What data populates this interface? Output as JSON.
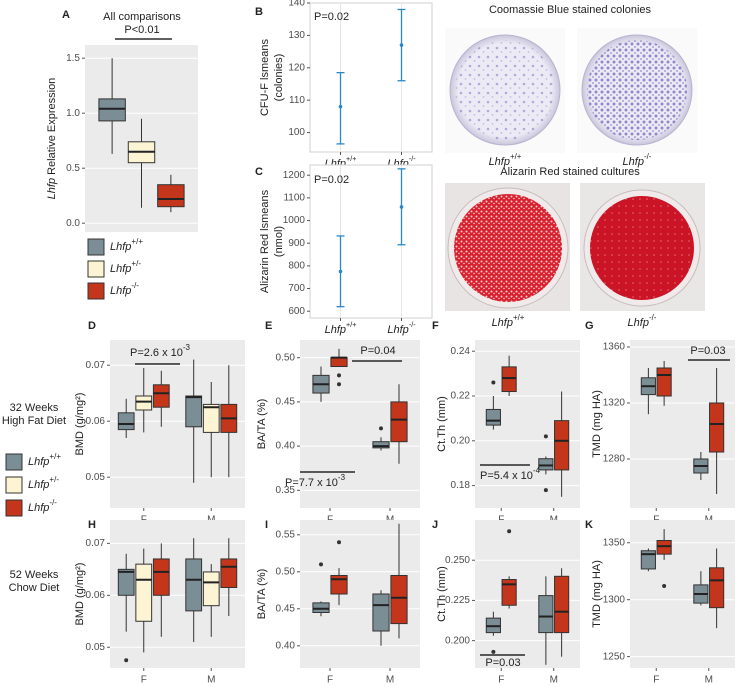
{
  "chart_data": [
    {
      "type": "box",
      "panel": "A",
      "ylabel_italic": "Lhfp",
      "ylabel": [
        "Relative Expression"
      ],
      "categories": [
        null
      ],
      "annotations": [
        {
          "text": "All comparisons"
        },
        {
          "text": "P<0.01"
        }
      ],
      "ylim": [
        -0.08,
        1.62
      ],
      "yticks": [
        {
          "value": 0,
          "label": "0.0"
        },
        {
          "value": 0.5,
          "label": "0.5"
        },
        {
          "value": 1,
          "label": "1.0"
        },
        {
          "value": 1.5,
          "label": "1.5"
        }
      ],
      "grid": true,
      "series": [
        {
          "name": "Lhfp",
          "genotype": "+/+",
          "color": "#7b8d95",
          "values": [
            {
              "min": 0.63,
              "q1": 0.93,
              "median": 1.04,
              "q3": 1.13,
              "max": 1.5,
              "outliers": []
            }
          ]
        },
        {
          "name": "Lhfp",
          "genotype": "+/-",
          "color": "#fcf4d2",
          "values": [
            {
              "min": 0.14,
              "q1": 0.55,
              "median": 0.65,
              "q3": 0.74,
              "max": 0.95,
              "outliers": []
            }
          ]
        },
        {
          "name": "Lhfp",
          "genotype": "-/-",
          "color": "#c4361b",
          "values": [
            {
              "min": 0.1,
              "q1": 0.15,
              "median": 0.22,
              "q3": 0.35,
              "max": 0.44,
              "outliers": []
            }
          ]
        }
      ]
    },
    {
      "type": "errorbar",
      "panel": "B",
      "ylabel": [
        "CFU-F lsmeans",
        "(colonies)"
      ],
      "color": "#2a88c9",
      "categories": [
        {
          "gene": "Lhfp",
          "genotype": "+/+"
        },
        {
          "gene": "Lhfp",
          "genotype": "-/-"
        }
      ],
      "values": [
        108,
        127
      ],
      "lower": [
        96.5,
        116
      ],
      "upper": [
        118.5,
        138
      ],
      "annotations": [
        {
          "text": "P=0.02"
        }
      ],
      "ylim": [
        94,
        140
      ],
      "yticks": [
        100,
        110,
        120,
        130,
        140
      ]
    },
    {
      "type": "errorbar",
      "panel": "C",
      "ylabel": [
        "Alizarin Red lsmeans",
        "(nmol)"
      ],
      "color": "#2a88c9",
      "categories": [
        {
          "gene": "Lhfp",
          "genotype": "+/+"
        },
        {
          "gene": "Lhfp",
          "genotype": "-/-"
        }
      ],
      "values": [
        775,
        1060
      ],
      "lower": [
        620,
        893
      ],
      "upper": [
        932,
        1228
      ],
      "annotations": [
        {
          "text": "P=0.02"
        }
      ],
      "ylim": [
        570,
        1245
      ],
      "yticks": [
        600,
        700,
        800,
        900,
        1000,
        1100,
        1200
      ]
    },
    {
      "type": "box",
      "panel": "D",
      "ylabel": [
        "BMD (g/mg²)"
      ],
      "categories": [
        "F",
        "M"
      ],
      "annotations": [
        {
          "text": "P=2.6 x 10",
          "sup": "-3"
        }
      ],
      "ylim": [
        0.0445,
        0.0745
      ],
      "yticks": [
        0.05,
        0.06,
        0.07
      ],
      "grid": true,
      "series": [
        {
          "name": "Lhfp",
          "genotype": "+/+",
          "color": "#7b8d95",
          "values": [
            {
              "min": 0.057,
              "q1": 0.0585,
              "median": 0.0595,
              "q3": 0.0615,
              "max": 0.064,
              "outliers": []
            },
            {
              "min": 0.049,
              "q1": 0.059,
              "median": 0.0643,
              "q3": 0.0645,
              "max": 0.071,
              "outliers": []
            }
          ]
        },
        {
          "name": "Lhfp",
          "genotype": "+/-",
          "color": "#fcf4d2",
          "values": [
            {
              "min": 0.058,
              "q1": 0.062,
              "median": 0.0635,
              "q3": 0.0645,
              "max": 0.0695,
              "outliers": []
            },
            {
              "min": 0.05,
              "q1": 0.058,
              "median": 0.0625,
              "q3": 0.063,
              "max": 0.067,
              "outliers": []
            }
          ]
        },
        {
          "name": "Lhfp",
          "genotype": "-/-",
          "color": "#c4361b",
          "values": [
            {
              "min": 0.059,
              "q1": 0.0625,
              "median": 0.065,
              "q3": 0.0665,
              "max": 0.069,
              "outliers": []
            },
            {
              "min": 0.05,
              "q1": 0.058,
              "median": 0.0605,
              "q3": 0.063,
              "max": 0.07,
              "outliers": []
            }
          ]
        }
      ]
    },
    {
      "type": "box",
      "panel": "E",
      "ylabel": [
        "BA/TA (%)"
      ],
      "categories": [
        "F",
        "M"
      ],
      "annotations": [
        {
          "text": "P=7.7 x 10",
          "sup": "-3"
        },
        {
          "text": "P=0.04"
        }
      ],
      "ylim": [
        0.33,
        0.52
      ],
      "yticks": [
        0.35,
        {
          "value": 0.4,
          "label": "0.40"
        },
        0.45,
        {
          "value": 0.5,
          "label": "0.50"
        }
      ],
      "grid": true,
      "series": [
        {
          "name": "Lhfp",
          "genotype": "+/+",
          "color": "#7b8d95",
          "values": [
            {
              "min": 0.45,
              "q1": 0.46,
              "median": 0.47,
              "q3": 0.48,
              "max": 0.49,
              "outliers": []
            },
            {
              "min": 0.395,
              "q1": 0.398,
              "median": 0.4,
              "q3": 0.405,
              "max": 0.41,
              "outliers": [
                0.42
              ]
            }
          ]
        },
        {
          "name": "Lhfp",
          "genotype": "-/-",
          "color": "#c4361b",
          "values": [
            {
              "min": 0.49,
              "q1": 0.49,
              "median": 0.5,
              "q3": 0.5,
              "max": 0.51,
              "outliers": [
                0.47,
                0.48
              ]
            },
            {
              "min": 0.38,
              "q1": 0.405,
              "median": 0.43,
              "q3": 0.45,
              "max": 0.47,
              "outliers": []
            }
          ]
        }
      ]
    },
    {
      "type": "box",
      "panel": "F",
      "ylabel": [
        "Ct.Th (mm)"
      ],
      "categories": [
        "F",
        "M"
      ],
      "annotations": [
        {
          "text": "P=5.4 x 10",
          "sup": "-4"
        }
      ],
      "ylim": [
        0.17,
        0.245
      ],
      "yticks": [
        0.18,
        {
          "value": 0.2,
          "label": "0.20"
        },
        0.22,
        0.24
      ],
      "grid": true,
      "series": [
        {
          "name": "Lhfp",
          "genotype": "+/+",
          "color": "#7b8d95",
          "values": [
            {
              "min": 0.205,
              "q1": 0.207,
              "median": 0.209,
              "q3": 0.214,
              "max": 0.22,
              "outliers": [
                0.226
              ]
            },
            {
              "min": 0.185,
              "q1": 0.187,
              "median": 0.189,
              "q3": 0.192,
              "max": 0.193,
              "outliers": [
                0.178,
                0.202
              ]
            }
          ]
        },
        {
          "name": "Lhfp",
          "genotype": "-/-",
          "color": "#c4361b",
          "values": [
            {
              "min": 0.22,
              "q1": 0.222,
              "median": 0.228,
              "q3": 0.233,
              "max": 0.238,
              "outliers": []
            },
            {
              "min": 0.175,
              "q1": 0.187,
              "median": 0.2,
              "q3": 0.209,
              "max": 0.222,
              "outliers": []
            }
          ]
        }
      ]
    },
    {
      "type": "box",
      "panel": "G",
      "ylabel": [
        "TMD (mg HA)"
      ],
      "categories": [
        "F",
        "M"
      ],
      "annotations": [
        {
          "text": "P=0.03"
        }
      ],
      "ylim": [
        1245,
        1365
      ],
      "yticks": [
        1280,
        1320,
        1360
      ],
      "grid": true,
      "series": [
        {
          "name": "Lhfp",
          "genotype": "+/+",
          "color": "#7b8d95",
          "values": [
            {
              "min": 1312,
              "q1": 1326,
              "median": 1332,
              "q3": 1338,
              "max": 1345,
              "outliers": []
            },
            {
              "min": 1265,
              "q1": 1270,
              "median": 1275,
              "q3": 1280,
              "max": 1285,
              "outliers": []
            }
          ]
        },
        {
          "name": "Lhfp",
          "genotype": "-/-",
          "color": "#c4361b",
          "values": [
            {
              "min": 1318,
              "q1": 1325,
              "median": 1340,
              "q3": 1345,
              "max": 1350,
              "outliers": []
            },
            {
              "min": 1255,
              "q1": 1285,
              "median": 1305,
              "q3": 1320,
              "max": 1345,
              "outliers": []
            }
          ]
        }
      ]
    },
    {
      "type": "box",
      "panel": "H",
      "ylabel": [
        "BMD (g/mg²)"
      ],
      "categories": [
        "F",
        "M"
      ],
      "annotations": [],
      "ylim": [
        0.046,
        0.0745
      ],
      "yticks": [
        0.05,
        0.06,
        0.07
      ],
      "grid": true,
      "series": [
        {
          "name": "Lhfp",
          "genotype": "+/+",
          "color": "#7b8d95",
          "values": [
            {
              "min": 0.053,
              "q1": 0.06,
              "median": 0.0645,
              "q3": 0.065,
              "max": 0.068,
              "outliers": [
                0.0475
              ]
            },
            {
              "min": 0.051,
              "q1": 0.057,
              "median": 0.063,
              "q3": 0.067,
              "max": 0.071,
              "outliers": []
            }
          ]
        },
        {
          "name": "Lhfp",
          "genotype": "+/-",
          "color": "#fcf4d2",
          "values": [
            {
              "min": 0.049,
              "q1": 0.055,
              "median": 0.063,
              "q3": 0.066,
              "max": 0.069,
              "outliers": []
            },
            {
              "min": 0.052,
              "q1": 0.058,
              "median": 0.0625,
              "q3": 0.0645,
              "max": 0.066,
              "outliers": []
            }
          ]
        },
        {
          "name": "Lhfp",
          "genotype": "-/-",
          "color": "#c4361b",
          "values": [
            {
              "min": 0.052,
              "q1": 0.06,
              "median": 0.0645,
              "q3": 0.067,
              "max": 0.07,
              "outliers": []
            },
            {
              "min": 0.056,
              "q1": 0.0615,
              "median": 0.0655,
              "q3": 0.067,
              "max": 0.071,
              "outliers": []
            }
          ]
        }
      ]
    },
    {
      "type": "box",
      "panel": "I",
      "ylabel": [
        "BA/TA (%)"
      ],
      "categories": [
        "F",
        "M"
      ],
      "annotations": [],
      "ylim": [
        0.37,
        0.57
      ],
      "yticks": [
        {
          "value": 0.4,
          "label": "0.40"
        },
        0.45,
        {
          "value": 0.5,
          "label": "0.50"
        },
        0.55
      ],
      "grid": true,
      "series": [
        {
          "name": "Lhfp",
          "genotype": "+/+",
          "color": "#7b8d95",
          "values": [
            {
              "min": 0.44,
              "q1": 0.445,
              "median": 0.45,
              "q3": 0.458,
              "max": 0.46,
              "outliers": [
                0.51
              ]
            },
            {
              "min": 0.4,
              "q1": 0.42,
              "median": 0.455,
              "q3": 0.47,
              "max": 0.475,
              "outliers": []
            }
          ]
        },
        {
          "name": "Lhfp",
          "genotype": "-/-",
          "color": "#c4361b",
          "values": [
            {
              "min": 0.455,
              "q1": 0.47,
              "median": 0.49,
              "q3": 0.495,
              "max": 0.505,
              "outliers": [
                0.54
              ]
            },
            {
              "min": 0.41,
              "q1": 0.43,
              "median": 0.465,
              "q3": 0.495,
              "max": 0.565,
              "outliers": []
            }
          ]
        }
      ]
    },
    {
      "type": "box",
      "panel": "J",
      "ylabel": [
        "Ct.Th (mm)"
      ],
      "categories": [
        "F",
        "M"
      ],
      "annotations": [
        {
          "text": "P=0.03"
        }
      ],
      "ylim": [
        0.183,
        0.275
      ],
      "yticks": [
        {
          "value": 0.2,
          "label": "0.200"
        },
        {
          "value": 0.225,
          "label": "0.225"
        },
        {
          "value": 0.25,
          "label": "0.250"
        }
      ],
      "grid": true,
      "series": [
        {
          "name": "Lhfp",
          "genotype": "+/+",
          "color": "#7b8d95",
          "values": [
            {
              "min": 0.203,
              "q1": 0.205,
              "median": 0.209,
              "q3": 0.214,
              "max": 0.218,
              "outliers": [
                0.193
              ]
            },
            {
              "min": 0.185,
              "q1": 0.205,
              "median": 0.215,
              "q3": 0.228,
              "max": 0.24,
              "outliers": []
            }
          ]
        },
        {
          "name": "Lhfp",
          "genotype": "-/-",
          "color": "#c4361b",
          "values": [
            {
              "min": 0.22,
              "q1": 0.222,
              "median": 0.235,
              "q3": 0.238,
              "max": 0.24,
              "outliers": [
                0.268
              ]
            },
            {
              "min": 0.19,
              "q1": 0.205,
              "median": 0.218,
              "q3": 0.24,
              "max": 0.245,
              "outliers": []
            }
          ]
        }
      ]
    },
    {
      "type": "box",
      "panel": "K",
      "ylabel": [
        "TMD (mg HA)"
      ],
      "categories": [
        "F",
        "M"
      ],
      "annotations": [],
      "ylim": [
        1240,
        1370
      ],
      "yticks": [
        1250,
        1300,
        1350
      ],
      "grid": true,
      "series": [
        {
          "name": "Lhfp",
          "genotype": "+/+",
          "color": "#7b8d95",
          "values": [
            {
              "min": 1325,
              "q1": 1327,
              "median": 1340,
              "q3": 1343,
              "max": 1345,
              "outliers": []
            },
            {
              "min": 1295,
              "q1": 1297,
              "median": 1305,
              "q3": 1313,
              "max": 1325,
              "outliers": []
            }
          ]
        },
        {
          "name": "Lhfp",
          "genotype": "-/-",
          "color": "#c4361b",
          "values": [
            {
              "min": 1335,
              "q1": 1340,
              "median": 1347,
              "q3": 1352,
              "max": 1362,
              "outliers": [
                1312
              ]
            },
            {
              "min": 1275,
              "q1": 1293,
              "median": 1317,
              "q3": 1328,
              "max": 1345,
              "outliers": []
            }
          ]
        }
      ]
    }
  ],
  "row_labels": [
    [
      "32 Weeks",
      "High Fat Diet"
    ],
    [
      "52 Weeks",
      "Chow Diet"
    ]
  ],
  "images": [
    {
      "title": "Coomassie Blue stained colonies",
      "captions": [
        {
          "gene": "Lhfp",
          "genotype": "+/+"
        },
        {
          "gene": "Lhfp",
          "genotype": "-/-"
        }
      ]
    },
    {
      "title": "Alizarin Red stained cultures",
      "captions": [
        {
          "gene": "Lhfp",
          "genotype": "+/+"
        },
        {
          "gene": "Lhfp",
          "genotype": "-/-"
        }
      ]
    }
  ]
}
